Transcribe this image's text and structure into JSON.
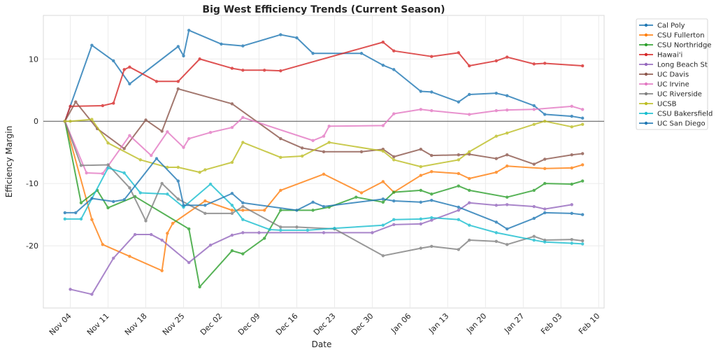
{
  "chart_data": {
    "type": "line",
    "title": "Big West Efficiency Trends (Current Season)",
    "xlabel": "Date",
    "ylabel": "Efficiency Margin",
    "x_ticks": [
      "Nov 04",
      "Nov 11",
      "Nov 18",
      "Nov 25",
      "Dec 02",
      "Dec 09",
      "Dec 16",
      "Dec 23",
      "Dec 30",
      "Jan 06",
      "Jan 13",
      "Jan 20",
      "Jan 27",
      "Feb 03",
      "Feb 10"
    ],
    "y_ticks": [
      10,
      0,
      -10,
      -20
    ],
    "ylim": [
      -30,
      17
    ],
    "xlim": [
      "Oct 30",
      "Feb 11"
    ],
    "grid": true,
    "reference_line": 0,
    "legend_placement": "outside-right",
    "series": [
      {
        "name": "Cal Poly",
        "color": "#1f77b4",
        "points": [
          [
            "Nov 03",
            0
          ],
          [
            "Nov 08",
            12.2
          ],
          [
            "Nov 12",
            9.7
          ],
          [
            "Nov 15",
            6.0
          ],
          [
            "Nov 24",
            12.0
          ],
          [
            "Nov 25",
            10.5
          ],
          [
            "Nov 26",
            14.6
          ],
          [
            "Dec 02",
            12.4
          ],
          [
            "Dec 06",
            12.1
          ],
          [
            "Dec 13",
            13.9
          ],
          [
            "Dec 16",
            13.4
          ],
          [
            "Dec 19",
            10.9
          ],
          [
            "Dec 28",
            10.9
          ],
          [
            "Jan 01",
            9.0
          ],
          [
            "Jan 03",
            8.3
          ],
          [
            "Jan 08",
            4.8
          ],
          [
            "Jan 10",
            4.7
          ],
          [
            "Jan 15",
            3.1
          ],
          [
            "Jan 17",
            4.3
          ],
          [
            "Jan 22",
            4.5
          ],
          [
            "Jan 24",
            4.1
          ],
          [
            "Jan 29",
            2.5
          ],
          [
            "Jan 31",
            1.1
          ],
          [
            "Feb 05",
            0.8
          ],
          [
            "Feb 07",
            0.5
          ]
        ]
      },
      {
        "name": "CSU Fullerton",
        "color": "#ff7f0e",
        "points": [
          [
            "Nov 03",
            0
          ],
          [
            "Nov 08",
            -15.8
          ],
          [
            "Nov 10",
            -19.8
          ],
          [
            "Nov 15",
            -21.7
          ],
          [
            "Nov 21",
            -24.0
          ],
          [
            "Nov 22",
            -18.0
          ],
          [
            "Nov 23",
            -16.4
          ],
          [
            "Nov 29",
            -12.8
          ],
          [
            "Dec 04",
            -14.3
          ],
          [
            "Dec 06",
            -14.3
          ],
          [
            "Dec 10",
            -14.3
          ],
          [
            "Dec 13",
            -11.1
          ],
          [
            "Dec 21",
            -8.5
          ],
          [
            "Dec 28",
            -11.5
          ],
          [
            "Jan 01",
            -9.7
          ],
          [
            "Jan 03",
            -11.4
          ],
          [
            "Jan 08",
            -8.7
          ],
          [
            "Jan 10",
            -8.1
          ],
          [
            "Jan 15",
            -8.4
          ],
          [
            "Jan 17",
            -9.2
          ],
          [
            "Jan 22",
            -8.2
          ],
          [
            "Jan 24",
            -7.2
          ],
          [
            "Jan 31",
            -7.6
          ],
          [
            "Feb 05",
            -7.5
          ],
          [
            "Feb 07",
            -7.0
          ]
        ]
      },
      {
        "name": "CSU Northridge",
        "color": "#2ca02c",
        "points": [
          [
            "Nov 03",
            0
          ],
          [
            "Nov 06",
            -13.1
          ],
          [
            "Nov 09",
            -11.1
          ],
          [
            "Nov 11",
            -13.9
          ],
          [
            "Nov 16",
            -12.1
          ],
          [
            "Nov 26",
            -17.3
          ],
          [
            "Nov 28",
            -26.6
          ],
          [
            "Dec 04",
            -20.8
          ],
          [
            "Dec 06",
            -21.3
          ],
          [
            "Dec 10",
            -18.8
          ],
          [
            "Dec 13",
            -14.3
          ],
          [
            "Dec 19",
            -14.3
          ],
          [
            "Dec 22",
            -13.8
          ],
          [
            "Dec 27",
            -12.2
          ],
          [
            "Jan 01",
            -13.0
          ],
          [
            "Jan 03",
            -11.4
          ],
          [
            "Jan 08",
            -11.1
          ],
          [
            "Jan 10",
            -11.7
          ],
          [
            "Jan 15",
            -10.4
          ],
          [
            "Jan 17",
            -11.1
          ],
          [
            "Jan 24",
            -12.2
          ],
          [
            "Jan 29",
            -11.1
          ],
          [
            "Jan 31",
            -10.0
          ],
          [
            "Feb 05",
            -10.1
          ],
          [
            "Feb 07",
            -9.6
          ]
        ]
      },
      {
        "name": "Hawai'i",
        "color": "#d62728",
        "points": [
          [
            "Nov 03",
            0
          ],
          [
            "Nov 04",
            2.4
          ],
          [
            "Nov 10",
            2.5
          ],
          [
            "Nov 12",
            2.9
          ],
          [
            "Nov 14",
            8.3
          ],
          [
            "Nov 15",
            8.7
          ],
          [
            "Nov 20",
            6.4
          ],
          [
            "Nov 24",
            6.4
          ],
          [
            "Nov 28",
            10.0
          ],
          [
            "Dec 04",
            8.5
          ],
          [
            "Dec 06",
            8.2
          ],
          [
            "Dec 10",
            8.2
          ],
          [
            "Dec 13",
            8.1
          ],
          [
            "Jan 01",
            12.7
          ],
          [
            "Jan 03",
            11.3
          ],
          [
            "Jan 10",
            10.4
          ],
          [
            "Jan 15",
            11.0
          ],
          [
            "Jan 17",
            8.9
          ],
          [
            "Jan 22",
            9.7
          ],
          [
            "Jan 24",
            10.3
          ],
          [
            "Jan 29",
            9.2
          ],
          [
            "Jan 31",
            9.3
          ],
          [
            "Feb 07",
            8.9
          ]
        ]
      },
      {
        "name": "Long Beach St",
        "color": "#9467bd",
        "points": [
          [
            "Nov 04",
            -27.0
          ],
          [
            "Nov 08",
            -27.8
          ],
          [
            "Nov 12",
            -22.0
          ],
          [
            "Nov 16",
            -18.2
          ],
          [
            "Nov 19",
            -18.2
          ],
          [
            "Nov 21",
            -19.1
          ],
          [
            "Nov 26",
            -22.7
          ],
          [
            "Nov 30",
            -19.9
          ],
          [
            "Dec 04",
            -18.3
          ],
          [
            "Dec 06",
            -17.9
          ],
          [
            "Dec 09",
            -17.9
          ],
          [
            "Dec 21",
            -17.9
          ],
          [
            "Dec 30",
            -17.9
          ],
          [
            "Jan 03",
            -16.6
          ],
          [
            "Jan 08",
            -16.5
          ],
          [
            "Jan 10",
            -15.9
          ],
          [
            "Jan 15",
            -14.3
          ],
          [
            "Jan 17",
            -13.1
          ],
          [
            "Jan 22",
            -13.5
          ],
          [
            "Jan 24",
            -13.4
          ],
          [
            "Jan 29",
            -13.7
          ],
          [
            "Jan 31",
            -14.1
          ],
          [
            "Feb 05",
            -13.4
          ]
        ]
      },
      {
        "name": "UC Davis",
        "color": "#8c564b",
        "points": [
          [
            "Nov 03",
            0
          ],
          [
            "Nov 05",
            3.1
          ],
          [
            "Nov 09",
            -1.2
          ],
          [
            "Nov 14",
            -4.4
          ],
          [
            "Nov 18",
            0.2
          ],
          [
            "Nov 21",
            -1.6
          ],
          [
            "Nov 24",
            5.2
          ],
          [
            "Dec 04",
            2.8
          ],
          [
            "Dec 13",
            -2.8
          ],
          [
            "Dec 17",
            -4.3
          ],
          [
            "Dec 21",
            -4.9
          ],
          [
            "Dec 28",
            -4.9
          ],
          [
            "Jan 01",
            -4.5
          ],
          [
            "Jan 03",
            -5.7
          ],
          [
            "Jan 08",
            -4.5
          ],
          [
            "Jan 10",
            -5.5
          ],
          [
            "Jan 15",
            -5.4
          ],
          [
            "Jan 17",
            -5.3
          ],
          [
            "Jan 22",
            -6.0
          ],
          [
            "Jan 24",
            -5.4
          ],
          [
            "Jan 29",
            -6.9
          ],
          [
            "Jan 31",
            -6.1
          ],
          [
            "Feb 05",
            -5.4
          ],
          [
            "Feb 07",
            -5.2
          ]
        ]
      },
      {
        "name": "UC Irvine",
        "color": "#e377c2",
        "points": [
          [
            "Nov 03",
            0
          ],
          [
            "Nov 07",
            -8.3
          ],
          [
            "Nov 10",
            -8.4
          ],
          [
            "Nov 15",
            -2.3
          ],
          [
            "Nov 19",
            -5.5
          ],
          [
            "Nov 22",
            -1.7
          ],
          [
            "Nov 25",
            -4.2
          ],
          [
            "Nov 26",
            -2.8
          ],
          [
            "Nov 30",
            -1.8
          ],
          [
            "Dec 04",
            -1.0
          ],
          [
            "Dec 06",
            0.6
          ],
          [
            "Dec 19",
            -3.1
          ],
          [
            "Dec 21",
            -2.4
          ],
          [
            "Dec 22",
            -0.8
          ],
          [
            "Jan 01",
            -0.7
          ],
          [
            "Jan 03",
            1.2
          ],
          [
            "Jan 08",
            1.9
          ],
          [
            "Jan 10",
            1.7
          ],
          [
            "Jan 17",
            1.1
          ],
          [
            "Jan 22",
            1.7
          ],
          [
            "Jan 24",
            1.8
          ],
          [
            "Jan 29",
            1.9
          ],
          [
            "Feb 05",
            2.4
          ],
          [
            "Feb 07",
            1.9
          ]
        ]
      },
      {
        "name": "UC Riverside",
        "color": "#7f7f7f",
        "points": [
          [
            "Nov 03",
            0
          ],
          [
            "Nov 06",
            -7.1
          ],
          [
            "Nov 11",
            -7.0
          ],
          [
            "Nov 15",
            -10.7
          ],
          [
            "Nov 18",
            -16.0
          ],
          [
            "Nov 21",
            -10.0
          ],
          [
            "Nov 24",
            -12.5
          ],
          [
            "Nov 29",
            -14.8
          ],
          [
            "Dec 04",
            -14.8
          ],
          [
            "Dec 06",
            -13.7
          ],
          [
            "Dec 13",
            -17.0
          ],
          [
            "Dec 16",
            -17.0
          ],
          [
            "Dec 23",
            -17.3
          ],
          [
            "Jan 01",
            -21.6
          ],
          [
            "Jan 08",
            -20.4
          ],
          [
            "Jan 10",
            -20.1
          ],
          [
            "Jan 15",
            -20.6
          ],
          [
            "Jan 17",
            -19.1
          ],
          [
            "Jan 22",
            -19.3
          ],
          [
            "Jan 24",
            -19.8
          ],
          [
            "Jan 29",
            -18.5
          ],
          [
            "Jan 31",
            -19.1
          ],
          [
            "Feb 05",
            -19.0
          ],
          [
            "Feb 07",
            -19.2
          ]
        ]
      },
      {
        "name": "UCSB",
        "color": "#bcbd22",
        "points": [
          [
            "Nov 03",
            0
          ],
          [
            "Nov 04",
            0
          ],
          [
            "Nov 08",
            0.3
          ],
          [
            "Nov 11",
            -3.5
          ],
          [
            "Nov 17",
            -6.2
          ],
          [
            "Nov 22",
            -7.4
          ],
          [
            "Nov 24",
            -7.4
          ],
          [
            "Nov 28",
            -8.2
          ],
          [
            "Nov 29",
            -7.8
          ],
          [
            "Dec 04",
            -6.6
          ],
          [
            "Dec 06",
            -3.4
          ],
          [
            "Dec 13",
            -5.8
          ],
          [
            "Dec 17",
            -5.6
          ],
          [
            "Dec 22",
            -3.4
          ],
          [
            "Jan 01",
            -4.8
          ],
          [
            "Jan 03",
            -6.2
          ],
          [
            "Jan 08",
            -7.3
          ],
          [
            "Jan 15",
            -6.2
          ],
          [
            "Jan 17",
            -4.9
          ],
          [
            "Jan 22",
            -2.4
          ],
          [
            "Jan 24",
            -1.9
          ],
          [
            "Jan 29",
            -0.5
          ],
          [
            "Jan 31",
            0
          ],
          [
            "Feb 05",
            -0.9
          ],
          [
            "Feb 07",
            -0.5
          ]
        ]
      },
      {
        "name": "CSU Bakersfield",
        "color": "#17becf",
        "points": [
          [
            "Nov 03",
            -15.7
          ],
          [
            "Nov 06",
            -15.7
          ],
          [
            "Nov 11",
            -7.5
          ],
          [
            "Nov 14",
            -8.3
          ],
          [
            "Nov 17",
            -11.5
          ],
          [
            "Nov 22",
            -11.7
          ],
          [
            "Nov 25",
            -13.8
          ],
          [
            "Nov 30",
            -10.1
          ],
          [
            "Dec 04",
            -13.5
          ],
          [
            "Dec 06",
            -15.8
          ],
          [
            "Dec 11",
            -17.4
          ],
          [
            "Dec 13",
            -17.5
          ],
          [
            "Dec 18",
            -17.5
          ],
          [
            "Dec 23",
            -17.2
          ],
          [
            "Jan 01",
            -16.7
          ],
          [
            "Jan 03",
            -15.8
          ],
          [
            "Jan 08",
            -15.7
          ],
          [
            "Jan 10",
            -15.5
          ],
          [
            "Jan 15",
            -15.8
          ],
          [
            "Jan 17",
            -16.7
          ],
          [
            "Jan 22",
            -17.9
          ],
          [
            "Jan 29",
            -19.1
          ],
          [
            "Jan 31",
            -19.4
          ],
          [
            "Feb 05",
            -19.6
          ],
          [
            "Feb 07",
            -19.7
          ]
        ]
      },
      {
        "name": "UC San Diego",
        "color": "#1f77b4",
        "points": [
          [
            "Nov 03",
            -14.7
          ],
          [
            "Nov 05",
            -14.7
          ],
          [
            "Nov 08",
            -12.4
          ],
          [
            "Nov 12",
            -12.9
          ],
          [
            "Nov 14",
            -12.6
          ],
          [
            "Nov 20",
            -6.0
          ],
          [
            "Nov 24",
            -9.6
          ],
          [
            "Nov 25",
            -13.5
          ],
          [
            "Nov 29",
            -13.5
          ],
          [
            "Dec 04",
            -11.6
          ],
          [
            "Dec 06",
            -13.1
          ],
          [
            "Dec 16",
            -14.3
          ],
          [
            "Dec 19",
            -13.0
          ],
          [
            "Dec 21",
            -13.7
          ],
          [
            "Jan 01",
            -12.5
          ],
          [
            "Jan 03",
            -12.8
          ],
          [
            "Jan 08",
            -13.0
          ],
          [
            "Jan 10",
            -12.7
          ],
          [
            "Jan 15",
            -13.8
          ],
          [
            "Jan 22",
            -16.2
          ],
          [
            "Jan 24",
            -17.3
          ],
          [
            "Jan 29",
            -15.6
          ],
          [
            "Jan 31",
            -14.7
          ],
          [
            "Feb 05",
            -14.8
          ],
          [
            "Feb 07",
            -15.0
          ]
        ]
      }
    ]
  }
}
